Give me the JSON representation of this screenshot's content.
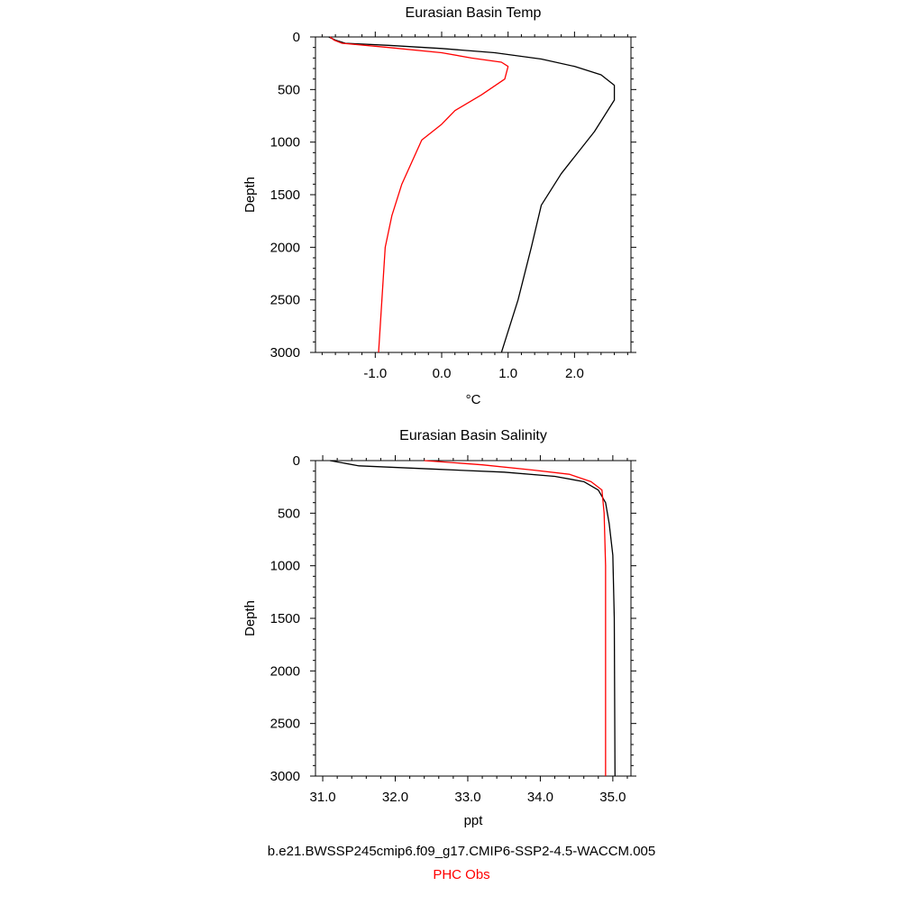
{
  "colors": {
    "model": "#000000",
    "obs": "#ff0000"
  },
  "captions": {
    "model_run": "b.e21.BWSSP245cmip6.f09_g17.CMIP6-SSP2-4.5-WACCM.005",
    "obs": "PHC Obs"
  },
  "chart_data": [
    {
      "type": "line",
      "title": "Eurasian Basin Temp",
      "xlabel": "°C",
      "ylabel": "Depth",
      "xlim": [
        -1.9,
        2.85
      ],
      "ylim": [
        3000,
        0
      ],
      "y_inverted": true,
      "x_ticks": [
        -1.0,
        0.0,
        1.0,
        2.0
      ],
      "x_tick_labels": [
        "-1.0",
        "0.0",
        "1.0",
        "2.0"
      ],
      "y_ticks": [
        0,
        500,
        1000,
        1500,
        2000,
        2500,
        3000
      ],
      "y_tick_labels": [
        "0",
        "500",
        "1000",
        "1500",
        "2000",
        "2500",
        "3000"
      ],
      "grid": false,
      "series": [
        {
          "color": "#000000",
          "points": [
            [
              -1.7,
              0
            ],
            [
              -1.6,
              30
            ],
            [
              -1.45,
              60
            ],
            [
              -0.8,
              80
            ],
            [
              0,
              110
            ],
            [
              0.8,
              150
            ],
            [
              1.5,
              210
            ],
            [
              2.0,
              280
            ],
            [
              2.4,
              360
            ],
            [
              2.6,
              460
            ],
            [
              2.6,
              600
            ],
            [
              2.3,
              900
            ],
            [
              1.8,
              1300
            ],
            [
              1.5,
              1600
            ],
            [
              1.35,
              2000
            ],
            [
              1.15,
              2500
            ],
            [
              0.9,
              3000
            ]
          ]
        },
        {
          "color": "#ff0000",
          "points": [
            [
              -1.68,
              0
            ],
            [
              -1.62,
              30
            ],
            [
              -1.5,
              60
            ],
            [
              -0.8,
              100
            ],
            [
              0,
              150
            ],
            [
              0.45,
              200
            ],
            [
              0.9,
              240
            ],
            [
              1.0,
              280
            ],
            [
              0.95,
              400
            ],
            [
              0.6,
              550
            ],
            [
              0.2,
              700
            ],
            [
              0,
              830
            ],
            [
              -0.3,
              980
            ],
            [
              -0.6,
              1400
            ],
            [
              -0.75,
              1700
            ],
            [
              -0.85,
              2000
            ],
            [
              -0.9,
              2500
            ],
            [
              -0.95,
              3000
            ]
          ]
        }
      ]
    },
    {
      "type": "line",
      "title": "Eurasian Basin Salinity",
      "xlabel": "ppt",
      "ylabel": "Depth",
      "xlim": [
        30.9,
        35.25
      ],
      "ylim": [
        3000,
        0
      ],
      "y_inverted": true,
      "x_ticks": [
        31.0,
        32.0,
        33.0,
        34.0,
        35.0
      ],
      "x_tick_labels": [
        "31.0",
        "32.0",
        "33.0",
        "34.0",
        "35.0"
      ],
      "y_ticks": [
        0,
        500,
        1000,
        1500,
        2000,
        2500,
        3000
      ],
      "y_tick_labels": [
        "0",
        "500",
        "1000",
        "1500",
        "2000",
        "2500",
        "3000"
      ],
      "grid": false,
      "series": [
        {
          "color": "#000000",
          "points": [
            [
              31.1,
              0
            ],
            [
              31.5,
              50
            ],
            [
              32.5,
              80
            ],
            [
              33.5,
              110
            ],
            [
              34.2,
              150
            ],
            [
              34.6,
              200
            ],
            [
              34.8,
              280
            ],
            [
              34.9,
              400
            ],
            [
              34.95,
              600
            ],
            [
              35.0,
              900
            ],
            [
              35.02,
              1500
            ],
            [
              35.03,
              3000
            ]
          ]
        },
        {
          "color": "#ff0000",
          "points": [
            [
              32.4,
              0
            ],
            [
              33.2,
              40
            ],
            [
              33.9,
              90
            ],
            [
              34.4,
              130
            ],
            [
              34.7,
              200
            ],
            [
              34.85,
              280
            ],
            [
              34.88,
              500
            ],
            [
              34.9,
              1000
            ],
            [
              34.9,
              2000
            ],
            [
              34.9,
              3000
            ]
          ]
        }
      ]
    }
  ]
}
